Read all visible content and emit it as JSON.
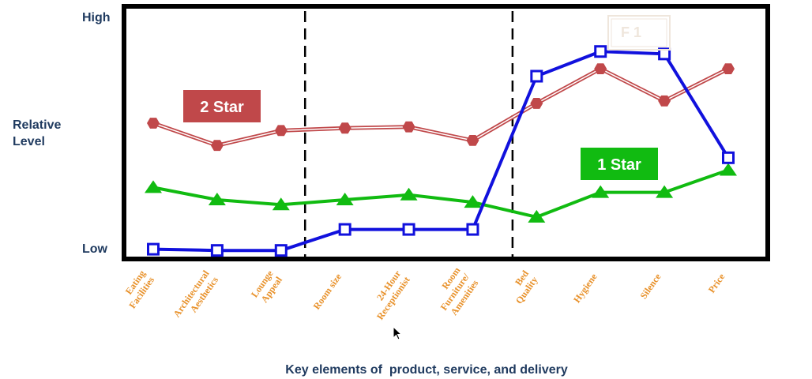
{
  "chart_data": {
    "type": "line",
    "categories": [
      "Eating\nFacilities",
      "Architectural\nAesthetics",
      "Lounge\nAppeal",
      "Room size",
      "24-Hour\nReceptionist",
      "Room\nFurniture/\nAmenities",
      "Bed\nQuality",
      "Hygiene",
      "Silence",
      "Price"
    ],
    "ylabel": "Relative\nLevel",
    "y_high_label": "High",
    "y_low_label": "Low",
    "xlabel": "Key elements of  product, service, and delivery",
    "ylim": [
      0,
      1
    ],
    "series": [
      {
        "name": "2 Star",
        "color": "#c0484a",
        "marker": "hexagon",
        "line": "double",
        "values": [
          0.54,
          0.45,
          0.51,
          0.52,
          0.525,
          0.47,
          0.62,
          0.76,
          0.63,
          0.76
        ]
      },
      {
        "name": "1 Star",
        "color": "#11bb11",
        "marker": "triangle",
        "line": "solid",
        "values": [
          0.28,
          0.23,
          0.21,
          0.23,
          0.25,
          0.22,
          0.16,
          0.26,
          0.26,
          0.35
        ]
      },
      {
        "name": "F 1",
        "color": "#1111dd",
        "marker": "square",
        "line": "solid",
        "values": [
          0.03,
          0.025,
          0.025,
          0.11,
          0.11,
          0.11,
          0.73,
          0.83,
          0.82,
          0.4
        ]
      }
    ],
    "dividers_after_categories": [
      2,
      5
    ],
    "legend_style": "labels placed inside plot"
  }
}
